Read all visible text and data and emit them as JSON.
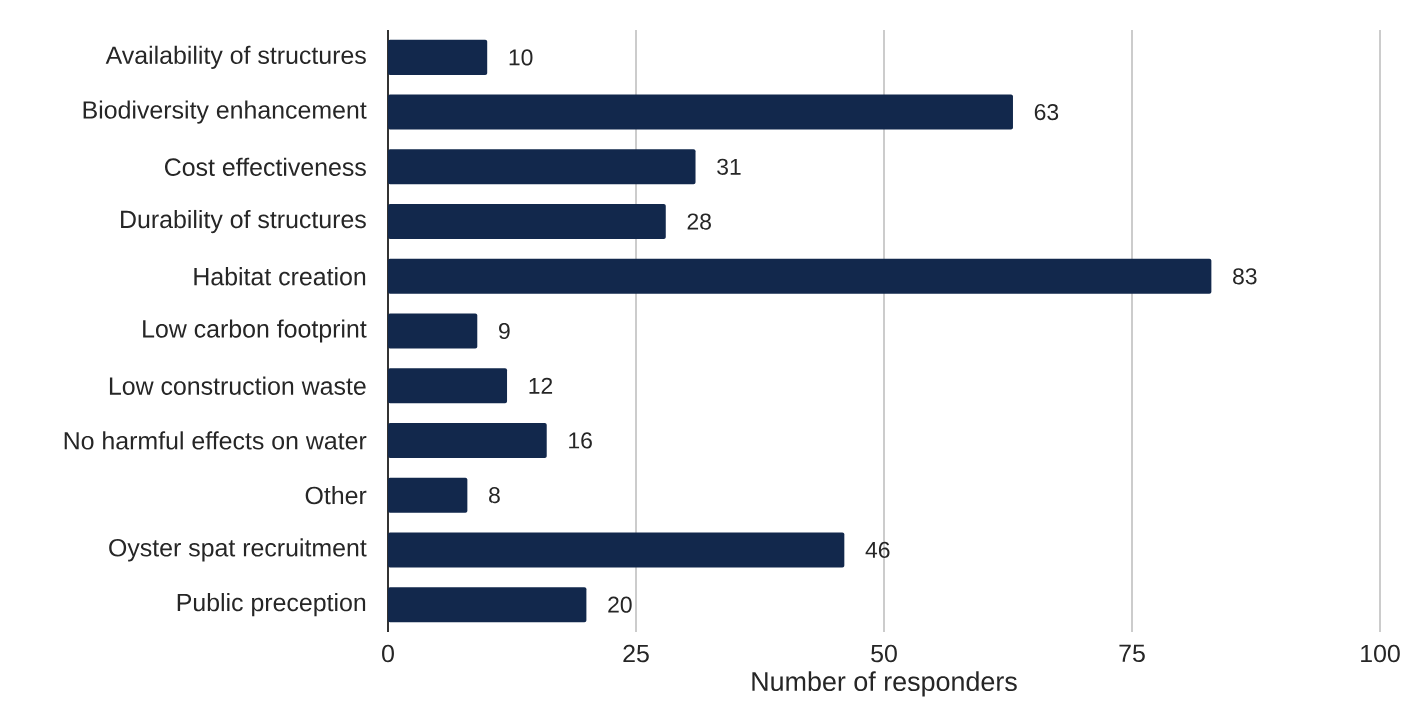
{
  "chart_data": {
    "type": "bar",
    "orientation": "horizontal",
    "xlabel": "Number of responders",
    "categories": [
      "Availability of structures",
      "Biodiversity enhancement",
      "Cost effectiveness",
      "Durability of structures",
      "Habitat creation",
      "Low carbon footprint",
      "Low construction waste",
      "No harmful effects on water",
      "Other",
      "Oyster spat recruitment",
      "Public preception"
    ],
    "values": [
      10,
      63,
      31,
      28,
      83,
      9,
      12,
      16,
      8,
      46,
      20
    ],
    "color": "#12284c",
    "xlim": [
      0,
      100
    ],
    "xticks": [
      0,
      25,
      50,
      75,
      100
    ],
    "grid": "x",
    "data_labels": true
  }
}
